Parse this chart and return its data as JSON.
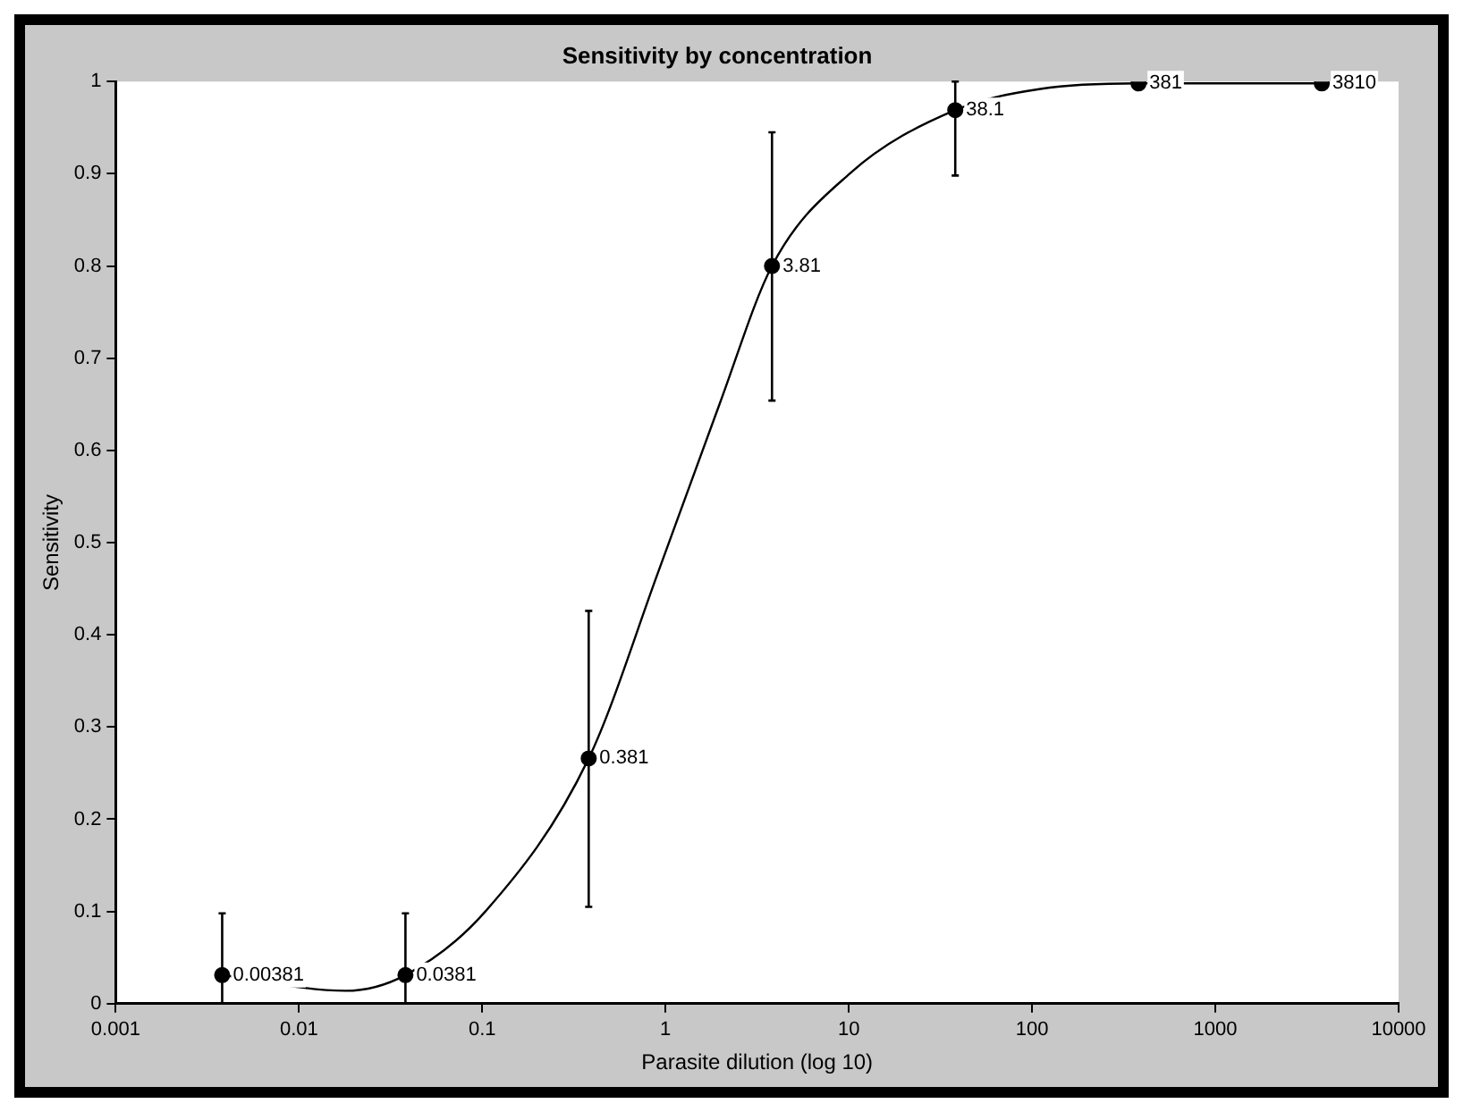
{
  "chart_data": {
    "type": "scatter",
    "title": "Sensitivity by concentration",
    "xlabel": "Parasite dilution (log 10)",
    "ylabel": "Sensitivity",
    "log": "x",
    "xlim": [
      0.001,
      10000
    ],
    "xticks": [
      0.001,
      0.01,
      0.1,
      1,
      10,
      100,
      1000,
      10000
    ],
    "ylim": [
      0,
      1
    ],
    "yticks": [
      0,
      0.1,
      0.2,
      0.3,
      0.4,
      0.5,
      0.6,
      0.7,
      0.8,
      0.9,
      1
    ],
    "grid": false,
    "legend": false,
    "annotations": [
      {
        "text": "0.00381",
        "x": 0.00381,
        "y": 0.031
      },
      {
        "text": "0.0381",
        "x": 0.0381,
        "y": 0.031
      },
      {
        "text": "0.381",
        "x": 0.381,
        "y": 0.266
      },
      {
        "text": "3.81",
        "x": 3.81,
        "y": 0.8
      },
      {
        "text": "38.1",
        "x": 38.1,
        "y": 0.969
      },
      {
        "text": "381",
        "x": 381,
        "y": 0.998
      },
      {
        "text": "3810",
        "x": 3810,
        "y": 0.998
      }
    ],
    "series": [
      {
        "color": "#000000",
        "marker": "circle",
        "x": [
          0.00381,
          0.0381,
          0.381,
          3.81,
          38.1,
          381,
          3810
        ],
        "values": [
          0.031,
          0.031,
          0.266,
          0.8,
          0.969,
          0.998,
          0.998
        ],
        "errors": [
          [
            0,
            0.098
          ],
          [
            0,
            0.098
          ],
          [
            0.105,
            0.426
          ],
          [
            0.654,
            0.945
          ],
          [
            0.898,
            1
          ],
          null,
          null
        ]
      },
      {
        "type": "line",
        "color": "#000000",
        "marker": "none",
        "line_style": "solid",
        "x": [
          0.00381,
          0.018,
          0.0381,
          0.104,
          0.381,
          0.92,
          1.97,
          3.81,
          10.1,
          38.1,
          111,
          381,
          3810
        ],
        "values": [
          0.031,
          0.014,
          0.031,
          0.1,
          0.266,
          0.47,
          0.65,
          0.8,
          0.9,
          0.969,
          0.992,
          0.998,
          0.998
        ]
      }
    ]
  }
}
